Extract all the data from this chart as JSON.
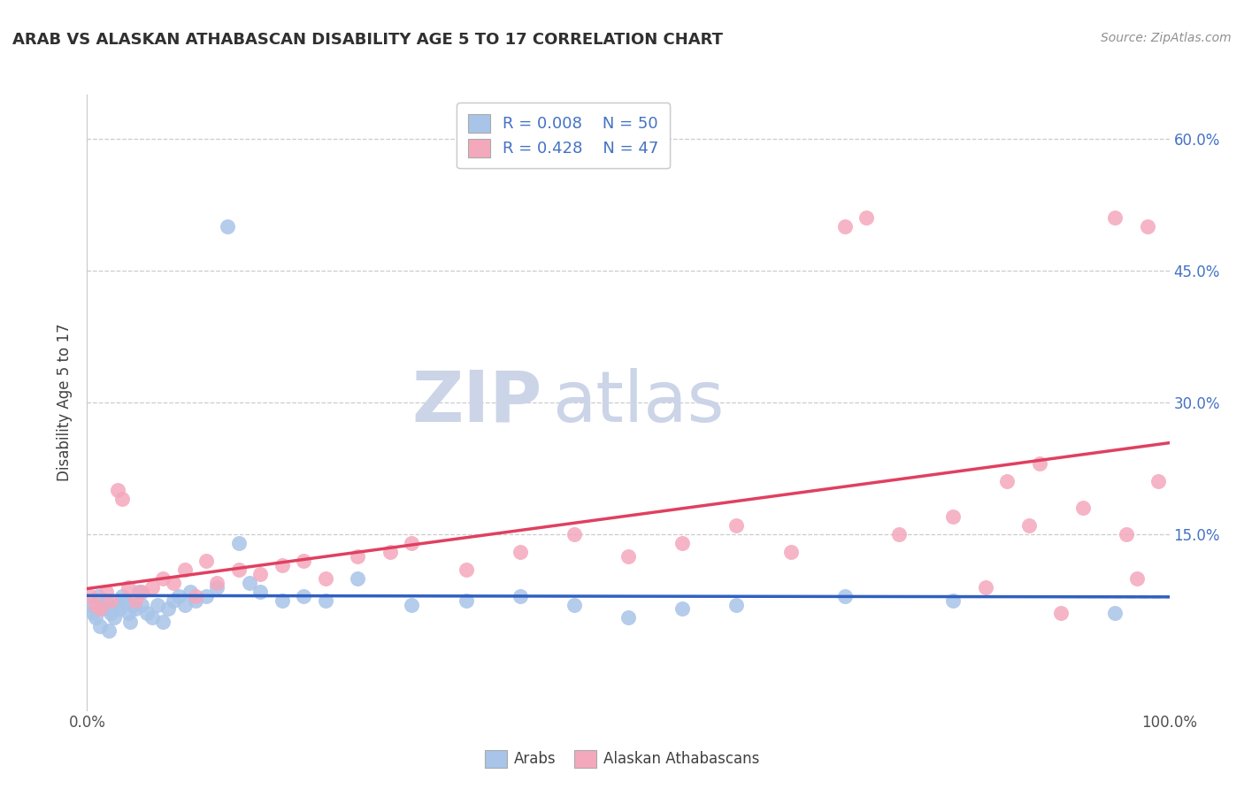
{
  "title": "ARAB VS ALASKAN ATHABASCAN DISABILITY AGE 5 TO 17 CORRELATION CHART",
  "source": "Source: ZipAtlas.com",
  "ylabel": "Disability Age 5 to 17",
  "legend_arab_R": "0.008",
  "legend_arab_N": "50",
  "legend_athabascan_R": "0.428",
  "legend_athabascan_N": "47",
  "legend_label_arab": "Arabs",
  "legend_label_athabascan": "Alaskan Athabascans",
  "arab_color": "#a8c4e8",
  "athabascan_color": "#f4a8bc",
  "arab_line_color": "#3060c0",
  "athabascan_line_color": "#e04060",
  "title_color": "#303030",
  "source_color": "#909090",
  "watermark_zip": "ZIP",
  "watermark_atlas": "atlas",
  "watermark_color": "#ccd4e8",
  "arab_x": [
    0.2,
    0.5,
    0.8,
    1.0,
    1.2,
    1.5,
    1.8,
    2.0,
    2.2,
    2.5,
    2.8,
    3.0,
    3.2,
    3.5,
    3.8,
    4.0,
    4.2,
    4.5,
    4.8,
    5.0,
    5.5,
    6.0,
    6.5,
    7.0,
    7.5,
    8.0,
    8.5,
    9.0,
    9.5,
    10.0,
    11.0,
    12.0,
    13.0,
    14.0,
    15.0,
    16.0,
    18.0,
    20.0,
    22.0,
    25.0,
    30.0,
    35.0,
    40.0,
    45.0,
    50.0,
    55.0,
    60.0,
    70.0,
    80.0,
    95.0
  ],
  "arab_y": [
    7.0,
    6.0,
    5.5,
    8.0,
    4.5,
    6.5,
    7.5,
    4.0,
    6.0,
    5.5,
    7.0,
    6.5,
    8.0,
    7.5,
    6.0,
    5.0,
    7.0,
    6.5,
    8.5,
    7.0,
    6.0,
    5.5,
    7.0,
    5.0,
    6.5,
    7.5,
    8.0,
    7.0,
    8.5,
    7.5,
    8.0,
    9.0,
    50.0,
    14.0,
    9.5,
    8.5,
    7.5,
    8.0,
    7.5,
    10.0,
    7.0,
    7.5,
    8.0,
    7.0,
    5.5,
    6.5,
    7.0,
    8.0,
    7.5,
    6.0
  ],
  "athabascan_x": [
    0.3,
    0.8,
    1.2,
    1.8,
    2.2,
    2.8,
    3.2,
    3.8,
    4.5,
    5.0,
    6.0,
    7.0,
    8.0,
    9.0,
    10.0,
    11.0,
    12.0,
    14.0,
    16.0,
    18.0,
    20.0,
    22.0,
    25.0,
    28.0,
    30.0,
    35.0,
    40.0,
    45.0,
    50.0,
    55.0,
    60.0,
    65.0,
    70.0,
    72.0,
    75.0,
    80.0,
    83.0,
    85.0,
    87.0,
    88.0,
    90.0,
    92.0,
    95.0,
    96.0,
    97.0,
    98.0,
    99.0
  ],
  "athabascan_y": [
    8.0,
    7.0,
    6.5,
    8.5,
    7.5,
    20.0,
    19.0,
    9.0,
    7.5,
    8.5,
    9.0,
    10.0,
    9.5,
    11.0,
    8.0,
    12.0,
    9.5,
    11.0,
    10.5,
    11.5,
    12.0,
    10.0,
    12.5,
    13.0,
    14.0,
    11.0,
    13.0,
    15.0,
    12.5,
    14.0,
    16.0,
    13.0,
    50.0,
    51.0,
    15.0,
    17.0,
    9.0,
    21.0,
    16.0,
    23.0,
    6.0,
    18.0,
    51.0,
    15.0,
    10.0,
    50.0,
    21.0
  ],
  "xlim": [
    0,
    100
  ],
  "ylim": [
    -5,
    65
  ],
  "ytick_vals": [
    15,
    30,
    45,
    60
  ],
  "ytick_labels": [
    "15.0%",
    "30.0%",
    "45.0%",
    "60.0%"
  ],
  "grid_color": "#cccccc",
  "background_color": "#ffffff"
}
